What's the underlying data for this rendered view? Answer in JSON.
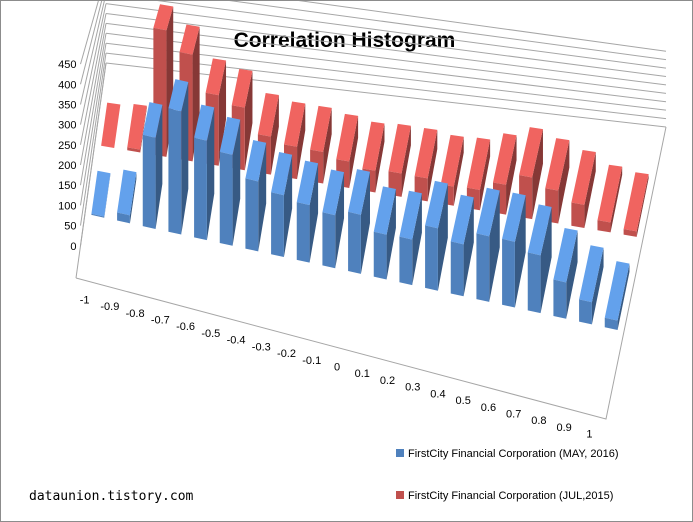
{
  "chart_data": {
    "type": "bar",
    "title": "Correlation Histogram",
    "categories": [
      "-1",
      "-0.9",
      "-0.8",
      "-0.7",
      "-0.6",
      "-0.5",
      "-0.4",
      "-0.3",
      "-0.2",
      "-0.1",
      "0",
      "0.1",
      "0.2",
      "0.3",
      "0.4",
      "0.5",
      "0.6",
      "0.7",
      "0.8",
      "0.9",
      "1"
    ],
    "series": [
      {
        "name": "FirstCity Financial Corporation (MAY, 2016)",
        "color": "#4f81bd",
        "values": [
          3,
          22,
          253,
          344,
          280,
          258,
          200,
          178,
          167,
          155,
          174,
          133,
          136,
          188,
          158,
          201,
          203,
          180,
          114,
          70,
          30
        ]
      },
      {
        "name": "FirstCity Financial Corporation (JUL,2015)",
        "color": "#c0504d",
        "values": [
          0,
          10,
          445,
          378,
          252,
          225,
          138,
          118,
          116,
          98,
          81,
          88,
          87,
          73,
          78,
          116,
          163,
          130,
          92,
          40,
          22
        ]
      }
    ],
    "ylim": [
      0,
      450
    ],
    "yticks": [
      "0",
      "50",
      "100",
      "150",
      "200",
      "250",
      "300",
      "350",
      "400",
      "450"
    ],
    "xlabel": "",
    "ylabel": "",
    "grid": true,
    "legend": "bottom-right"
  },
  "watermark": "dataunion.tistory.com"
}
